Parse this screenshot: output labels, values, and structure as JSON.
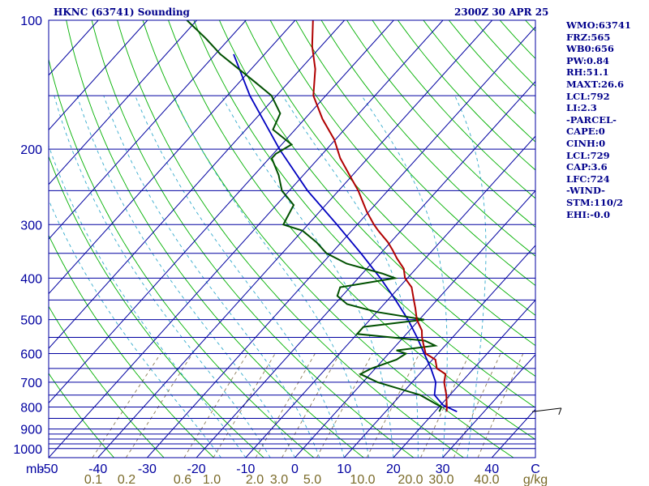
{
  "header": {
    "station": "HKNC (63741) Sounding",
    "time": "2300Z 30 APR 25"
  },
  "side_panel": {
    "lines": [
      "WMO:63741",
      "FRZ:565",
      "WB0:656",
      "PW:0.84",
      "RH:51.1",
      "MAXT:26.6",
      "LCL:792",
      "LI:2.3",
      "-PARCEL-",
      "CAPE:0",
      "CINH:0",
      "LCL:729",
      "CAP:3.6",
      "LFC:724",
      "-WIND-",
      "STM:110/2",
      "EHI:-0.0"
    ]
  },
  "colors": {
    "frame": "#0000a0",
    "isobar": "#0000a0",
    "isotherm": "#0000a0",
    "dry_adiabat": "#00b000",
    "moist_adiabat": "#33aacc",
    "mixing_ratio": "#8a7a55",
    "temperature": "#b00000",
    "dewpoint": "#005000",
    "parcel": "#0000c0",
    "axis_text": "#0000a0",
    "mixing_text": "#7a6a28"
  },
  "chart_data": {
    "type": "skew-t",
    "pressure_axis_labels": [
      "100",
      "200",
      "300",
      "400",
      "500",
      "600",
      "700",
      "800",
      "900",
      "1000",
      "mb"
    ],
    "pressure_levels": [
      100,
      200,
      300,
      400,
      500,
      600,
      700,
      800,
      900,
      1000
    ],
    "extra_isobars": [
      150,
      250,
      350,
      450,
      550,
      650,
      750,
      850,
      925,
      950,
      975
    ],
    "temperature_axis_labels": [
      "-50",
      "-40",
      "-30",
      "-20",
      "-10",
      "0",
      "10",
      "20",
      "30",
      "40",
      "C"
    ],
    "temperature_ticks": [
      -50,
      -40,
      -30,
      -20,
      -10,
      0,
      10,
      20,
      30,
      40
    ],
    "mixing_ratio_labels": [
      "0.1",
      "0.2",
      "0.6",
      "1.0",
      "2.0",
      "3.0",
      "5.0",
      "10.0",
      "20.0",
      "30.0",
      "40.0",
      "g/kg"
    ],
    "mixing_ratio_values": [
      0.1,
      0.2,
      0.6,
      1.0,
      2.0,
      3.0,
      5.0,
      10.0,
      20.0,
      30.0,
      40.0
    ],
    "xlim": [
      -50,
      50
    ],
    "ylim": [
      1050,
      100
    ],
    "temperature_profile": {
      "p": [
        820,
        800,
        750,
        700,
        670,
        650,
        620,
        600,
        570,
        550,
        530,
        500,
        470,
        450,
        420,
        400,
        380,
        360,
        345,
        330,
        310,
        300,
        280,
        250,
        230,
        210,
        190,
        170,
        150,
        130,
        115,
        100
      ],
      "t": [
        22.4,
        21.6,
        19.3,
        16.5,
        15.3,
        12.5,
        10.6,
        7.5,
        5.3,
        3.8,
        2.5,
        -0.5,
        -2.9,
        -4.7,
        -7.5,
        -10.5,
        -12.5,
        -15.7,
        -18.0,
        -20.5,
        -24.6,
        -26.6,
        -30.4,
        -36.0,
        -40.6,
        -45.6,
        -50.2,
        -56.4,
        -62.5,
        -67.0,
        -71.8,
        -76.4
      ]
    },
    "dewpoint_profile": {
      "p": [
        820,
        800,
        750,
        700,
        670,
        650,
        620,
        600,
        590,
        575,
        560,
        540,
        520,
        500,
        480,
        460,
        440,
        420,
        400,
        390,
        370,
        350,
        330,
        310,
        300,
        290,
        270,
        250,
        230,
        210,
        205,
        195,
        180,
        165,
        150,
        140,
        130,
        120,
        110,
        100
      ],
      "t": [
        20.9,
        20.5,
        14.0,
        3.0,
        -2.0,
        -0.8,
        2.7,
        3.5,
        1.0,
        8.0,
        5.0,
        -10.0,
        -10.0,
        1.0,
        -10.0,
        -17.5,
        -21.0,
        -22.0,
        -12.5,
        -16.0,
        -25.0,
        -31.0,
        -35.0,
        -40.0,
        -45.0,
        -45.5,
        -46.5,
        -51.5,
        -55.0,
        -59.5,
        -59.5,
        -58.0,
        -64.5,
        -66.0,
        -71.0,
        -76.5,
        -82.5,
        -89.0,
        -95.0,
        -102.0
      ]
    },
    "parcel_path": {
      "p": [
        820,
        792,
        750,
        700,
        650,
        600,
        550,
        500,
        450,
        400,
        350,
        300,
        250,
        200,
        150,
        120
      ],
      "t": [
        24.5,
        20.5,
        16.9,
        14.8,
        11.3,
        7.2,
        2.8,
        -2.3,
        -8.4,
        -15.5,
        -24.0,
        -34.1,
        -46.3,
        -59.6,
        -75.4,
        -86.3
      ]
    },
    "wind_barbs": [
      {
        "p": 820,
        "dir": 255,
        "speed_kt": 5
      }
    ]
  }
}
